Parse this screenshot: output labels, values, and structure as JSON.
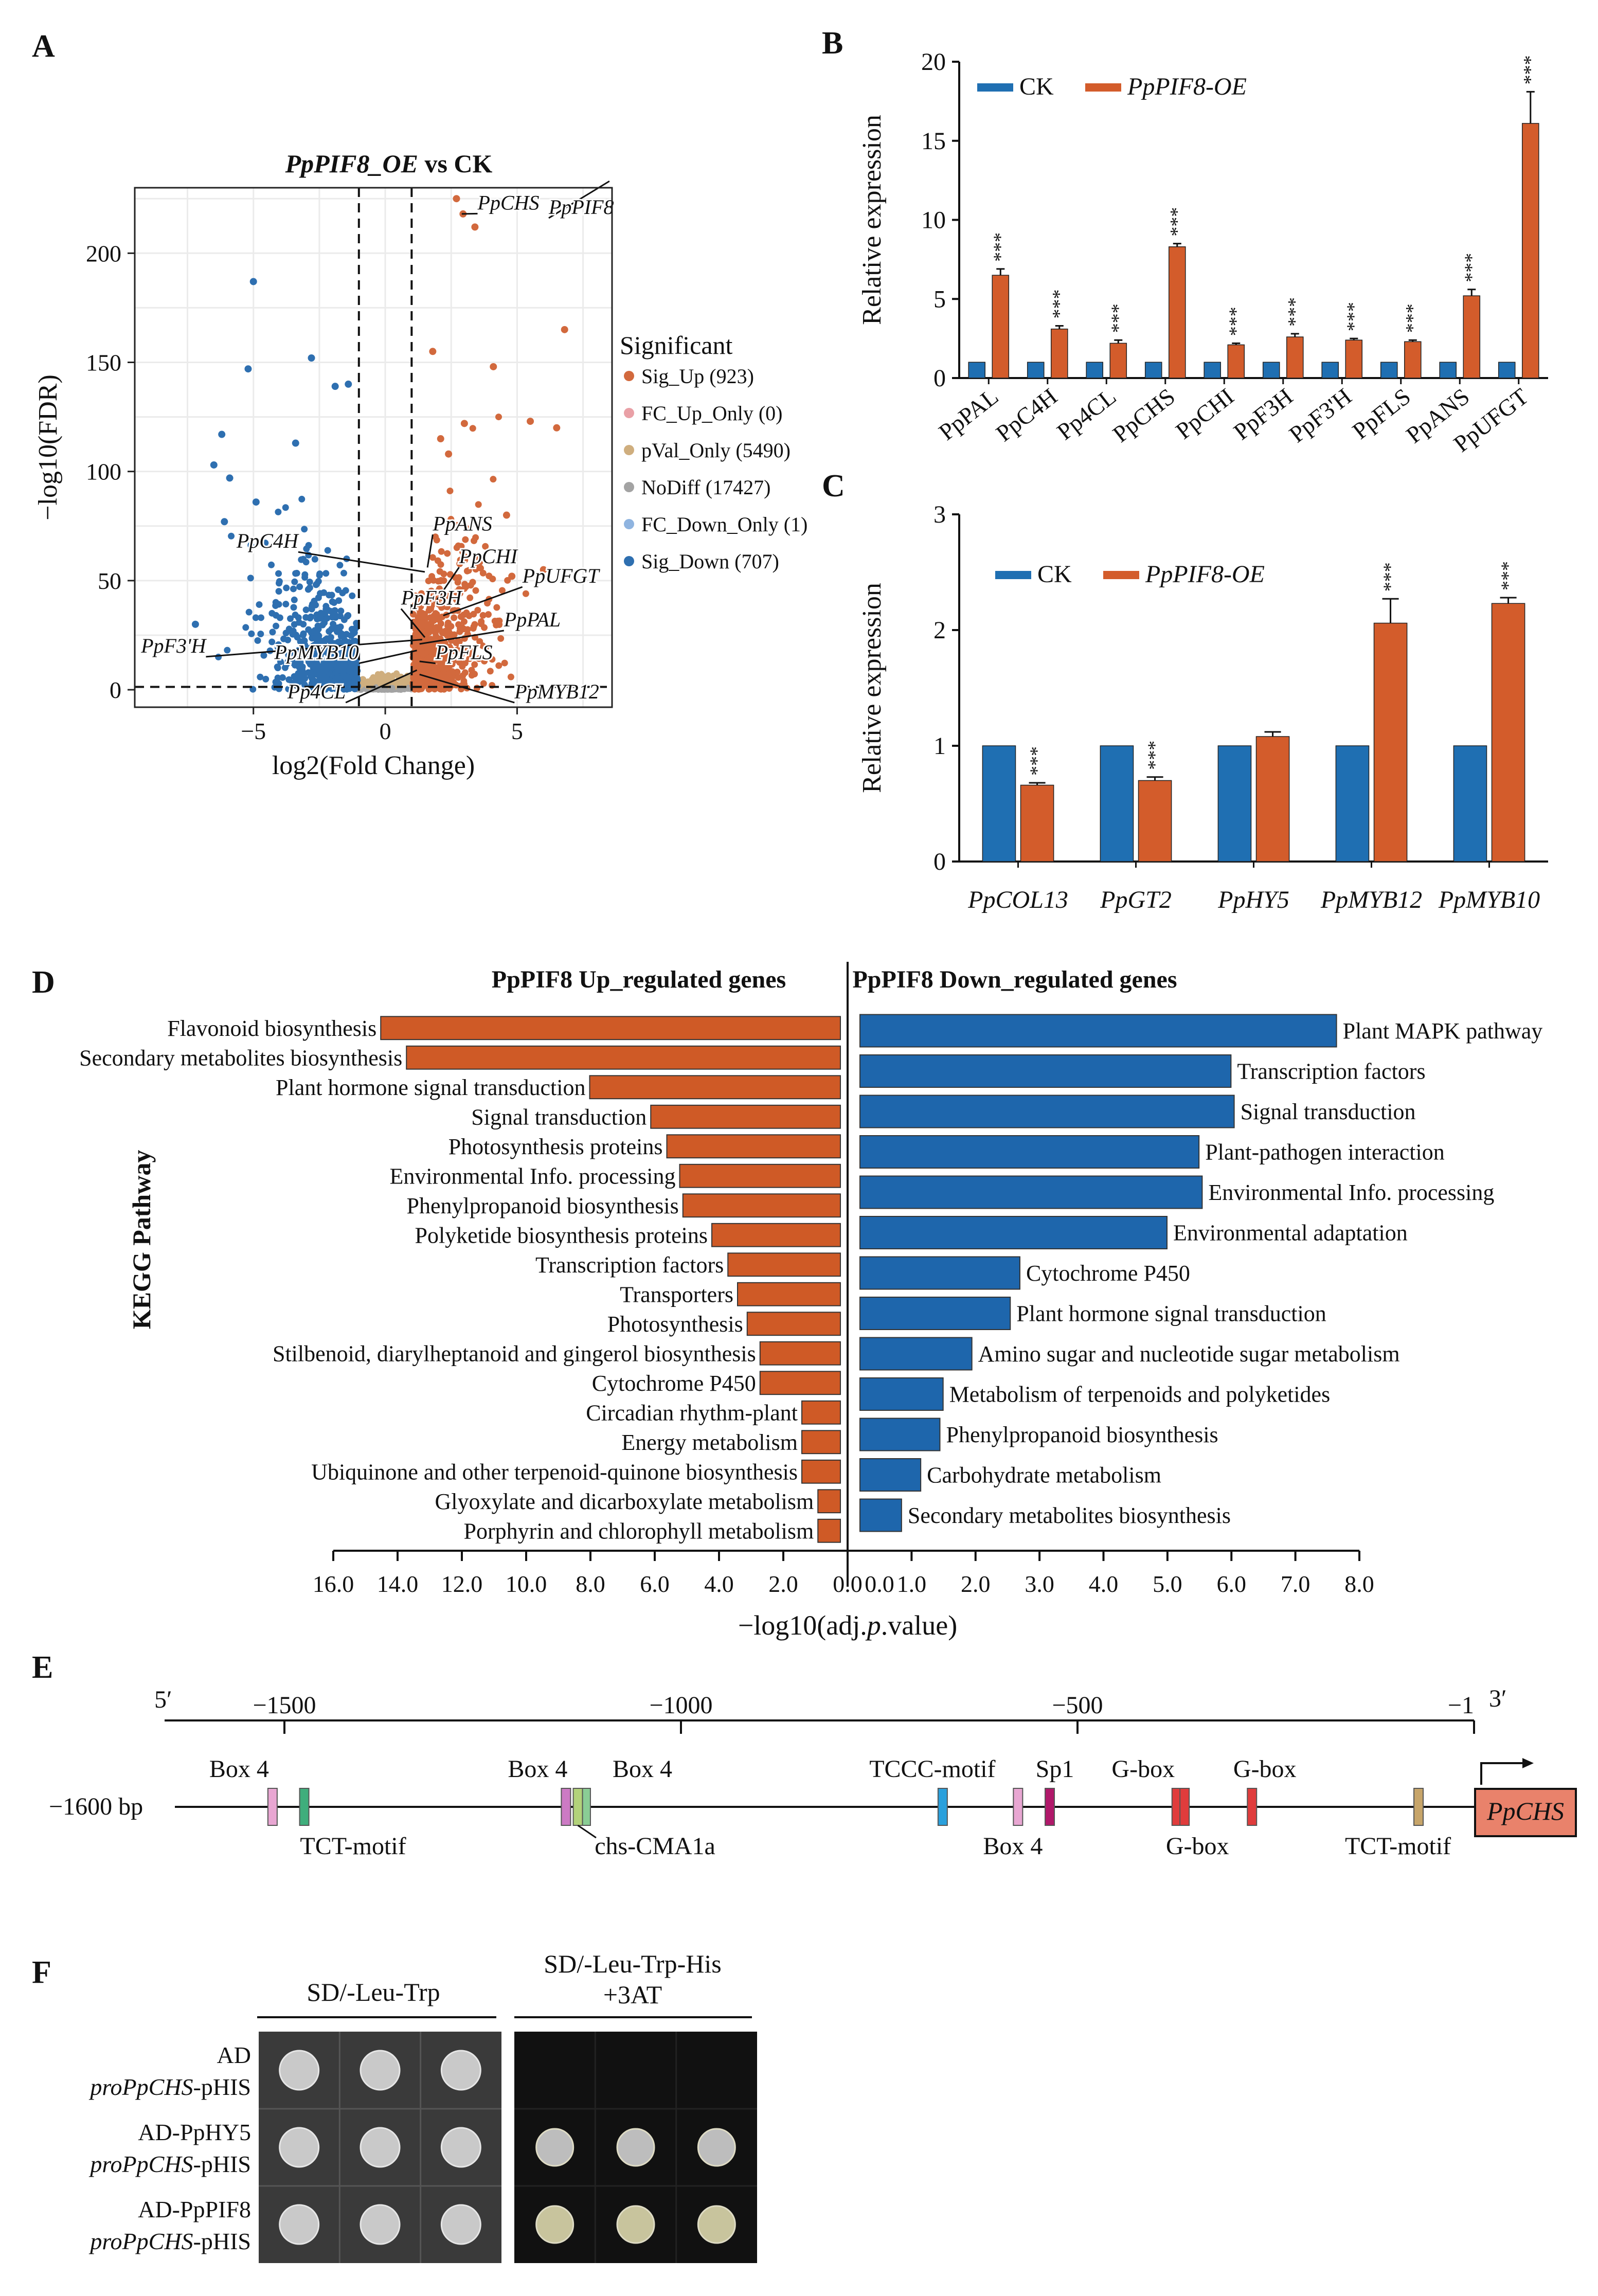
{
  "panel_labels": {
    "A": "A",
    "B": "B",
    "C": "C",
    "D": "D",
    "E": "E",
    "F": "F"
  },
  "chart_data": [
    {
      "id": "A",
      "type": "scatter",
      "title_italic": "PpPIF8_OE",
      "title_rest": " vs CK",
      "xlabel": "log2(Fold Change)",
      "ylabel": "−log10(FDR)",
      "xlim": [
        -9.5,
        8.6
      ],
      "ylim": [
        -8,
        230
      ],
      "x_ticks": [
        -5,
        0,
        5
      ],
      "y_ticks": [
        0,
        50,
        100,
        150,
        200
      ],
      "x_tick_labels": [
        "−5",
        "0",
        "5"
      ],
      "y_tick_labels": [
        "0",
        "50",
        "100",
        "150",
        "200"
      ],
      "thresholds": {
        "x": [
          -1,
          1
        ],
        "y": 1.3
      },
      "legend_title": "Significant",
      "legend": [
        {
          "key": "Sig_Up",
          "label": "Sig_Up (923)",
          "color": "#d2693d"
        },
        {
          "key": "FC_Up_Only",
          "label": "FC_Up_Only (0)",
          "color": "#e9a0a6"
        },
        {
          "key": "pVal_Only",
          "label": "pVal_Only (5490)",
          "color": "#cfae7e"
        },
        {
          "key": "NoDiff",
          "label": "NoDiff (17427)",
          "color": "#a3a3a3"
        },
        {
          "key": "FC_Down_Only",
          "label": "FC_Down_Only (1)",
          "color": "#8fb4e0"
        },
        {
          "key": "Sig_Down",
          "label": "Sig_Down (707)",
          "color": "#2e6fb0"
        }
      ],
      "gene_labels": [
        {
          "label": "PpCHS",
          "x": 3.5,
          "y": 220
        },
        {
          "label": "PpPIF8",
          "x": 6.2,
          "y": 218
        },
        {
          "label": "PpANS",
          "x": 1.8,
          "y": 73
        },
        {
          "label": "PpC4H",
          "x": -3.3,
          "y": 65
        },
        {
          "label": "PpCHI",
          "x": 2.8,
          "y": 58
        },
        {
          "label": "PpUFGT",
          "x": 5.2,
          "y": 49
        },
        {
          "label": "PpF3H",
          "x": 0.6,
          "y": 39
        },
        {
          "label": "PpPAL",
          "x": 4.5,
          "y": 29
        },
        {
          "label": "PpF3'H",
          "x": -6.8,
          "y": 17
        },
        {
          "label": "PpMYB10",
          "x": -1.0,
          "y": 14
        },
        {
          "label": "PpFLS",
          "x": 1.9,
          "y": 14
        },
        {
          "label": "Pp4CL",
          "x": -1.5,
          "y": -4
        },
        {
          "label": "PpMYB12",
          "x": 4.9,
          "y": -4
        }
      ],
      "highlight_points": [
        {
          "x": 2.7,
          "y": 225,
          "group": "Sig_Up"
        },
        {
          "x": 2.95,
          "y": 218,
          "group": "Sig_Up"
        },
        {
          "x": 3.4,
          "y": 212,
          "group": "Sig_Up"
        },
        {
          "x": -5.0,
          "y": 187,
          "group": "Sig_Down"
        },
        {
          "x": 6.8,
          "y": 165,
          "group": "Sig_Up"
        },
        {
          "x": 1.8,
          "y": 155,
          "group": "Sig_Up"
        },
        {
          "x": -2.8,
          "y": 152,
          "group": "Sig_Down"
        },
        {
          "x": -5.2,
          "y": 147,
          "group": "Sig_Down"
        },
        {
          "x": 4.1,
          "y": 148,
          "group": "Sig_Up"
        },
        {
          "x": -1.4,
          "y": 140,
          "group": "Sig_Down"
        },
        {
          "x": -1.9,
          "y": 139,
          "group": "Sig_Down"
        },
        {
          "x": -6.2,
          "y": 117,
          "group": "Sig_Down"
        },
        {
          "x": -3.4,
          "y": 113,
          "group": "Sig_Down"
        },
        {
          "x": 5.5,
          "y": 123,
          "group": "Sig_Up"
        },
        {
          "x": 6.5,
          "y": 120,
          "group": "Sig_Up"
        },
        {
          "x": 3.0,
          "y": 122,
          "group": "Sig_Up"
        },
        {
          "x": -6.5,
          "y": 103,
          "group": "Sig_Down"
        },
        {
          "x": -5.9,
          "y": 97,
          "group": "Sig_Down"
        },
        {
          "x": 2.1,
          "y": 115,
          "group": "Sig_Up"
        },
        {
          "x": 2.4,
          "y": 108,
          "group": "Sig_Up"
        },
        {
          "x": -6.1,
          "y": 77,
          "group": "Sig_Down"
        },
        {
          "x": -4.9,
          "y": 86,
          "group": "Sig_Down"
        },
        {
          "x": 4.6,
          "y": 80,
          "group": "Sig_Up"
        },
        {
          "x": 6.0,
          "y": 55,
          "group": "Sig_Up"
        },
        {
          "x": 4.8,
          "y": 52,
          "group": "Sig_Up"
        },
        {
          "x": -7.2,
          "y": 30,
          "group": "Sig_Down"
        }
      ]
    },
    {
      "id": "B",
      "type": "bar",
      "ylabel": "Relative expression",
      "ylim": [
        0,
        20
      ],
      "y_ticks": [
        0,
        5,
        10,
        15,
        20
      ],
      "y_tick_labels": [
        "0",
        "5",
        "10",
        "15",
        "20"
      ],
      "categories": [
        "PpPAL",
        "PpC4H",
        "Pp4CL",
        "PpCHS",
        "PpCHI",
        "PpF3H",
        "PpF3'H",
        "PpFLS",
        "PpANS",
        "PpUFGT"
      ],
      "series": [
        {
          "name": "CK",
          "color": "#1f6fb2",
          "values": [
            1,
            1,
            1,
            1,
            1,
            1,
            1,
            1,
            1,
            1
          ],
          "errors": [
            0,
            0,
            0,
            0,
            0,
            0,
            0,
            0,
            0,
            0
          ]
        },
        {
          "name": "PpPIF8-OE",
          "color": "#d35c2b",
          "values": [
            6.5,
            3.1,
            2.2,
            8.3,
            2.1,
            2.6,
            2.4,
            2.3,
            5.2,
            16.1
          ],
          "errors": [
            0.4,
            0.2,
            0.2,
            0.2,
            0.1,
            0.2,
            0.1,
            0.1,
            0.4,
            2.0
          ]
        }
      ],
      "significance": [
        "***",
        "***",
        "***",
        "***",
        "***",
        "***",
        "***",
        "***",
        "***",
        "***"
      ]
    },
    {
      "id": "C",
      "type": "bar",
      "ylabel": "Relative expression",
      "ylim": [
        0,
        3
      ],
      "y_ticks": [
        0,
        1,
        2,
        3
      ],
      "y_tick_labels": [
        "0",
        "1",
        "2",
        "3"
      ],
      "categories": [
        "PpCOL13",
        "PpGT2",
        "PpHY5",
        "PpMYB12",
        "PpMYB10"
      ],
      "series": [
        {
          "name": "CK",
          "color": "#1f6fb2",
          "values": [
            1,
            1,
            1,
            1,
            1
          ],
          "errors": [
            0,
            0,
            0,
            0,
            0
          ]
        },
        {
          "name": "PpPIF8-OE",
          "color": "#d35c2b",
          "values": [
            0.66,
            0.7,
            1.08,
            2.06,
            2.23
          ],
          "errors": [
            0.02,
            0.03,
            0.04,
            0.21,
            0.05
          ]
        }
      ],
      "significance": [
        "***",
        "***",
        "",
        "***",
        "***"
      ]
    },
    {
      "id": "D",
      "type": "bar",
      "orientation": "horizontal",
      "ylabel": "KEGG Pathway",
      "xlabel_prefix": "−log10(adj.",
      "xlabel_italic": "p",
      "xlabel_suffix": ".value)",
      "left_title": "PpPIF8 Up_regulated genes",
      "right_title": "PpPIF8 Down_regulated genes",
      "left_ticks": [
        "16.0",
        "14.0",
        "12.0",
        "10.0",
        "8.0",
        "6.0",
        "4.0",
        "2.0",
        "0.0"
      ],
      "left_tick_values": [
        16,
        14,
        12,
        10,
        8,
        6,
        4,
        2,
        0
      ],
      "right_ticks": [
        "0.0",
        "1.0",
        "2.0",
        "3.0",
        "4.0",
        "5.0",
        "6.0",
        "7.0",
        "8.0"
      ],
      "right_tick_values": [
        0,
        1,
        2,
        3,
        4,
        5,
        6,
        7,
        8
      ],
      "up": [
        {
          "label": "Flavonoid biosynthesis",
          "value": 14.3
        },
        {
          "label": "Secondary metabolites biosynthesis",
          "value": 13.5
        },
        {
          "label": "Plant hormone signal transduction",
          "value": 7.8
        },
        {
          "label": "Signal transduction",
          "value": 5.9
        },
        {
          "label": "Photosynthesis proteins",
          "value": 5.4
        },
        {
          "label": "Environmental Info. processing",
          "value": 5.0
        },
        {
          "label": "Phenylpropanoid biosynthesis",
          "value": 4.9
        },
        {
          "label": "Polyketide biosynthesis proteins",
          "value": 4.0
        },
        {
          "label": "Transcription factors",
          "value": 3.5
        },
        {
          "label": "Transporters",
          "value": 3.2
        },
        {
          "label": "Photosynthesis",
          "value": 2.9
        },
        {
          "label": "Stilbenoid, diarylheptanoid and gingerol biosynthesis",
          "value": 2.5
        },
        {
          "label": "Cytochrome P450",
          "value": 2.5
        },
        {
          "label": "Circadian rhythm-plant",
          "value": 1.2
        },
        {
          "label": "Energy metabolism",
          "value": 1.2
        },
        {
          "label": "Ubiquinone and other terpenoid-quinone biosynthesis",
          "value": 1.2
        },
        {
          "label": "Glyoxylate and dicarboxylate metabolism",
          "value": 0.7
        },
        {
          "label": "Porphyrin and chlorophyll metabolism",
          "value": 0.7
        }
      ],
      "down": [
        {
          "label": "Plant MAPK pathway",
          "value": 7.45
        },
        {
          "label": "Transcription factors",
          "value": 5.8
        },
        {
          "label": "Signal transduction",
          "value": 5.85
        },
        {
          "label": "Plant-pathogen interaction",
          "value": 5.3
        },
        {
          "label": "Environmental Info. processing",
          "value": 5.35
        },
        {
          "label": "Environmental adaptation",
          "value": 4.8
        },
        {
          "label": "Cytochrome P450",
          "value": 2.5
        },
        {
          "label": "Plant hormone signal transduction",
          "value": 2.35
        },
        {
          "label": "Amino sugar and nucleotide sugar metabolism",
          "value": 1.75
        },
        {
          "label": "Metabolism of terpenoids and polyketides",
          "value": 1.3
        },
        {
          "label": "Phenylpropanoid biosynthesis",
          "value": 1.25
        },
        {
          "label": "Carbohydrate metabolism",
          "value": 0.95
        },
        {
          "label": "Secondary metabolites biosynthesis",
          "value": 0.65
        }
      ],
      "up_color": "#cf5a26",
      "down_color": "#1e66ac"
    }
  ],
  "panel_E": {
    "five_prime": "5′",
    "three_prime": "3′",
    "start_label": "−1600 bp",
    "gene": "PpCHS",
    "ruler": [
      {
        "label": "−1500",
        "pos": -1500
      },
      {
        "label": "−1000",
        "pos": -1000
      },
      {
        "label": "−500",
        "pos": -500
      },
      {
        "label": "−1",
        "pos": -1
      }
    ],
    "elements_top": [
      {
        "name": "Box 4",
        "pos": -1515,
        "color": "#e8a6d2"
      },
      {
        "name": "Box 4",
        "pos": -1145,
        "color": "#cc7ac4"
      },
      {
        "name": "Box 4",
        "pos": -1120,
        "color": "#8acd95"
      },
      {
        "name": "TCCC-motif",
        "pos": -670,
        "color": "#2aa0dc"
      },
      {
        "name": "Sp1",
        "pos": -535,
        "color": "#b0186a"
      },
      {
        "name": "G-box",
        "pos": -375,
        "color": "#e03c3c"
      },
      {
        "name": "G-box",
        "pos": -280,
        "color": "#e03c3c"
      }
    ],
    "elements_bottom": [
      {
        "name": "TCT-motif",
        "pos": -1475,
        "color": "#3fae7c"
      },
      {
        "name": "chs-CMA1a",
        "pos": -1130,
        "color": "#b2d27a"
      },
      {
        "name": "Box 4",
        "pos": -575,
        "color": "#e8a6d2"
      },
      {
        "name": "G-box",
        "pos": -365,
        "color": "#e03c3c"
      },
      {
        "name": "TCT-motif",
        "pos": -70,
        "color": "#c7a56a"
      }
    ]
  },
  "panel_F": {
    "media": [
      {
        "label": "SD/-Leu-Trp"
      },
      {
        "label_line1": "SD/-Leu-Trp-His",
        "label_line2": "+3AT"
      }
    ],
    "rows": [
      {
        "line1": "AD",
        "line2_italic": "proPpCHS",
        "line2_rest": "-pHIS",
        "growth_on_selective": false
      },
      {
        "line1": "AD-PpHY5",
        "line2_italic": "proPpCHS",
        "line2_rest": "-pHIS",
        "growth_on_selective": true
      },
      {
        "line1": "AD-PpPIF8",
        "line2_italic": "proPpCHS",
        "line2_rest": "-pHIS",
        "growth_on_selective": true
      }
    ]
  }
}
